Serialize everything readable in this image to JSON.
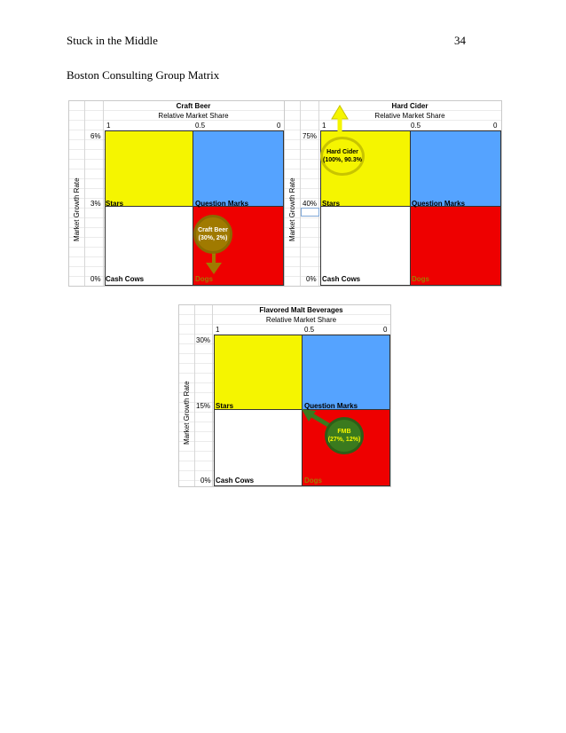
{
  "header": {
    "running_head": "Stuck in the Middle",
    "page_number": "34"
  },
  "heading": "Boston Consulting Group Matrix",
  "colors": {
    "stars": "#f5f500",
    "question_marks": "#55a3ff",
    "dogs": "#ee0000",
    "cash_cows": "#ffffff"
  },
  "matrices": [
    {
      "title": "Craft Beer",
      "x_axis_label": "Relative Market Share",
      "x_ticks": [
        "1",
        "0.5",
        "0"
      ],
      "y_axis_label": "Market Growth Rate",
      "y_ticks": [
        "6%",
        "3%",
        "0%"
      ],
      "quadrants": {
        "stars": "Stars",
        "question_marks": "Question Marks",
        "cash_cows": "Cash Cows",
        "dogs": "Dogs"
      },
      "bubble": {
        "name": "Craft Beer",
        "value": "(30%, 2%)",
        "color": "#a07a00",
        "arrow": "down"
      }
    },
    {
      "title": "Hard Cider",
      "x_axis_label": "Relative Market Share",
      "x_ticks": [
        "1",
        "0.5",
        "0"
      ],
      "y_axis_label": "Market Growth Rate",
      "y_ticks": [
        "75%",
        "40%",
        "0%"
      ],
      "quadrants": {
        "stars": "Stars",
        "question_marks": "Question Marks",
        "cash_cows": "Cash Cows",
        "dogs": "Dogs"
      },
      "bubble": {
        "name": "Hard Cider",
        "value": "(100%, 90.3%",
        "color": "#c8c400",
        "arrow": "up"
      }
    },
    {
      "title": "Flavored Malt Beverages",
      "x_axis_label": "Relative Market Share",
      "x_ticks": [
        "1",
        "0.5",
        "0"
      ],
      "y_axis_label": "Market Growth Rate",
      "y_ticks": [
        "30%",
        "15%",
        "0%"
      ],
      "quadrants": {
        "stars": "Stars",
        "question_marks": "Question Marks",
        "cash_cows": "Cash Cows",
        "dogs": "Dogs"
      },
      "bubble": {
        "name": "FMB",
        "value": "(27%, 12%)",
        "color": "#3a7a1e",
        "arrow": "up-left"
      }
    }
  ]
}
